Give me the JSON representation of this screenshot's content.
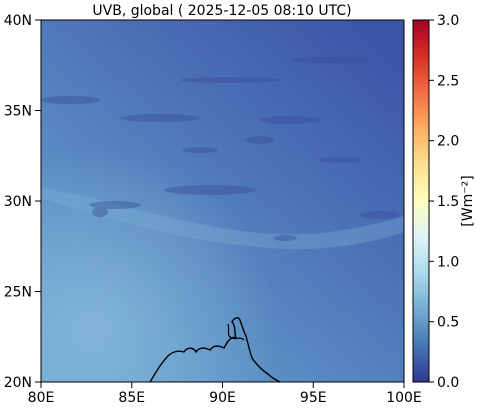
{
  "map": {
    "title": "UVB, global ( 2025-12-05 08:10 UTC)",
    "lon_ticks": [
      "80E",
      "85E",
      "90E",
      "95E",
      "100E"
    ],
    "lat_ticks": [
      "20N",
      "25N",
      "30N",
      "35N",
      "40N"
    ],
    "lon_range": [
      80,
      100
    ],
    "lat_range": [
      20,
      40
    ]
  },
  "colorbar": {
    "label": "[Wm⁻²]",
    "ticks": [
      "0.0",
      "0.5",
      "1.0",
      "1.5",
      "2.0",
      "2.5",
      "3.0"
    ],
    "range": [
      0.0,
      3.0
    ],
    "colormap": "RdYlBu_r",
    "colors": [
      "#313695",
      "#4575b4",
      "#74add1",
      "#abd9e9",
      "#e0f3f8",
      "#ffffbf",
      "#fee090",
      "#fdae61",
      "#f46d43",
      "#d73027",
      "#a50026"
    ]
  }
}
